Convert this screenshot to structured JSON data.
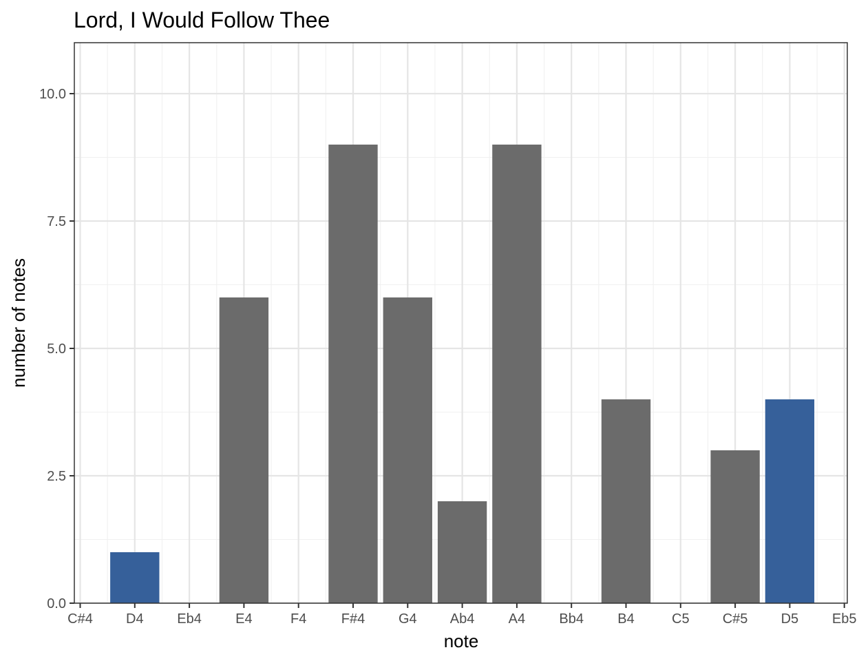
{
  "chart_data": {
    "type": "bar",
    "title": "Lord, I Would Follow Thee",
    "xlabel": "note",
    "ylabel": "number of notes",
    "categories": [
      "C#4",
      "D4",
      "Eb4",
      "E4",
      "F4",
      "F#4",
      "G4",
      "Ab4",
      "A4",
      "Bb4",
      "B4",
      "C5",
      "C#5",
      "D5",
      "Eb5"
    ],
    "values": [
      0,
      1,
      0,
      6,
      0,
      9,
      6,
      2,
      9,
      0,
      4,
      0,
      3,
      4,
      0
    ],
    "highlighted": [
      "D4",
      "D5"
    ],
    "ylim": [
      0,
      11
    ],
    "yticks": [
      "0.0",
      "2.5",
      "5.0",
      "7.5",
      "10.0"
    ],
    "grid": true,
    "colors": {
      "bar": "#6b6b6b",
      "highlight": "#36609a"
    }
  }
}
